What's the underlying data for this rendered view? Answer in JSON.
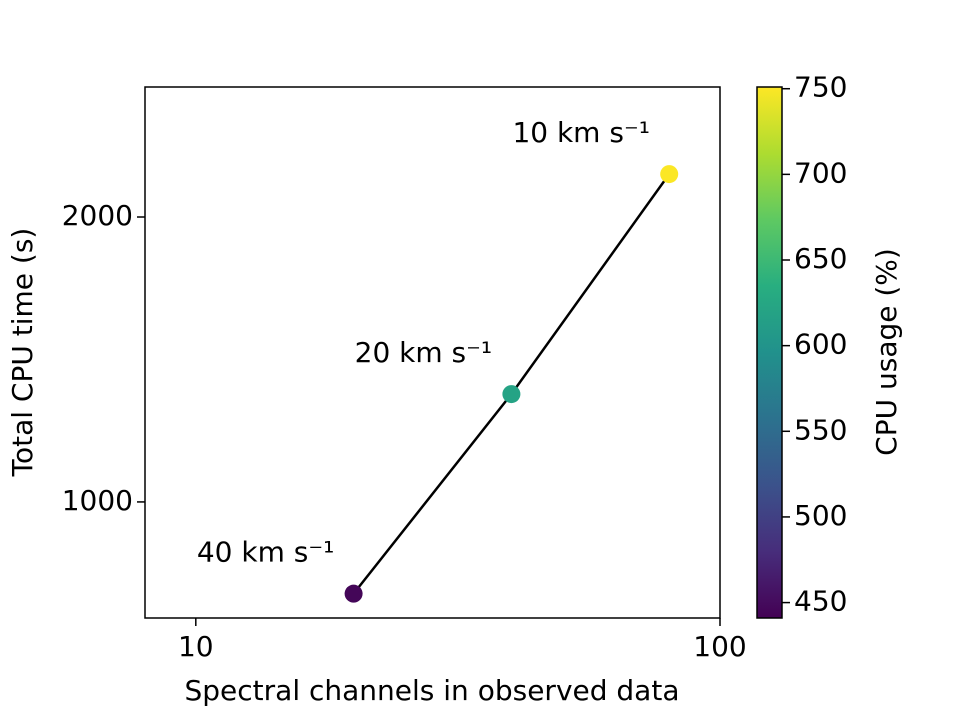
{
  "chart_data": {
    "type": "scatter",
    "x_label": "Spectral channels in observed data",
    "y_label": "Total CPU time (s)",
    "colorbar_label": "CPU usage (%)",
    "x": [
      20,
      40,
      80
    ],
    "values": [
      800,
      1300,
      2220
    ],
    "color_values": [
      445,
      620,
      750
    ],
    "annotations": [
      "40 km s⁻¹",
      "20 km s⁻¹",
      "10 km s⁻¹"
    ],
    "line_color": "#000000",
    "colormap": "viridis",
    "xscale": "log",
    "yscale": "log",
    "xlim": [
      8,
      100
    ],
    "xticks": [
      10,
      100
    ],
    "ylim": [
      754,
      2744
    ],
    "yticks": [
      1000,
      2000
    ],
    "clim": [
      441,
      751
    ],
    "cticks": [
      450,
      500,
      550,
      600,
      650,
      700,
      750
    ]
  }
}
